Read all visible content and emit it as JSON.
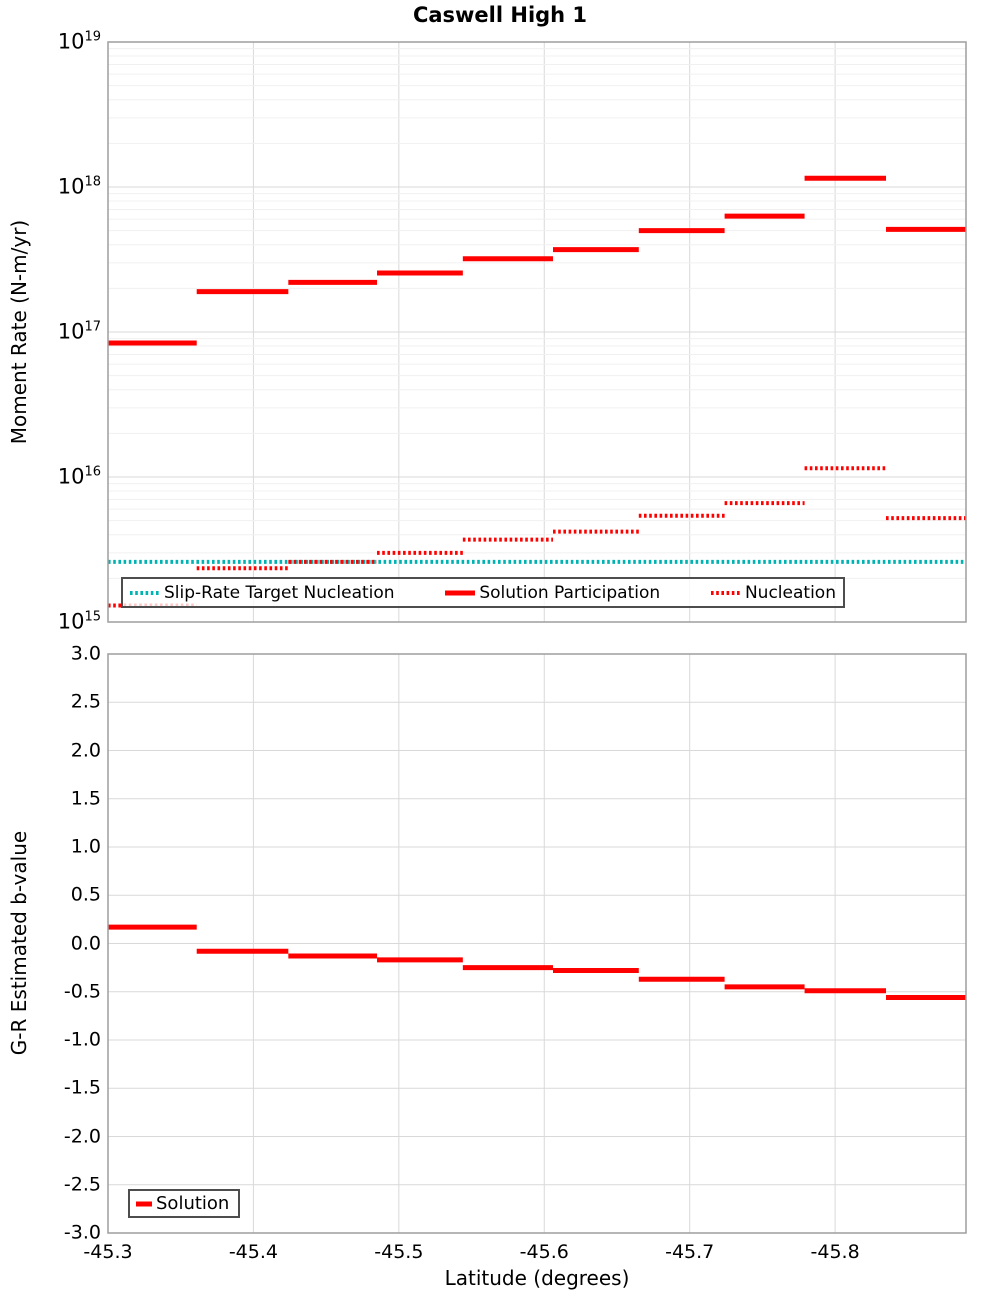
{
  "title": "Caswell High 1",
  "axes": {
    "xlabel": "Latitude (degrees)",
    "ylabel_top": "Moment Rate (N-m/yr)",
    "ylabel_bottom": "G-R Estimated b-value"
  },
  "colors": {
    "solution_red": "#ff0000",
    "target_teal": "#00b3b3",
    "grid_major": "#d9d9d9",
    "grid_minor": "#f0f0f0",
    "spine": "#9e9e9e",
    "legend_border": "#4d4d4d"
  },
  "chart_data": [
    {
      "type": "line",
      "panel": "moment-rate",
      "title": "Caswell High 1",
      "ylabel": "Moment Rate (N-m/yr)",
      "yscale": "log",
      "ylim": [
        1000000000000000.0,
        1e+19
      ],
      "ytick_exponents": [
        19,
        18,
        17,
        16,
        15
      ],
      "xlim": [
        -45.3,
        -45.89
      ],
      "grid": true,
      "legend_position": "inside-bottom-left",
      "boundaries": [
        -45.3,
        -45.361,
        -45.424,
        -45.485,
        -45.544,
        -45.606,
        -45.665,
        -45.724,
        -45.779,
        -45.835,
        -45.89
      ],
      "series": [
        {
          "name": "Slip-Rate Target Nucleation",
          "style": "dotted",
          "color": "#00b3b3",
          "kind": "constant",
          "value": 2600000000000000.0
        },
        {
          "name": "Solution Participation",
          "style": "solid",
          "color": "#ff0000",
          "kind": "steps",
          "values": [
            8.4e+16,
            1.9e+17,
            2.2e+17,
            2.55e+17,
            3.2e+17,
            3.7e+17,
            5e+17,
            6.3e+17,
            1.15e+18,
            5.1e+17
          ]
        },
        {
          "name": "Nucleation",
          "style": "dotted",
          "color": "#ff0000",
          "kind": "steps",
          "values": [
            1300000000000000.0,
            2350000000000000.0,
            2600000000000000.0,
            3000000000000000.0,
            3700000000000000.0,
            4200000000000000.0,
            5400000000000000.0,
            6600000000000000.0,
            1.15e+16,
            5200000000000000.0
          ]
        }
      ]
    },
    {
      "type": "line",
      "panel": "b-value",
      "ylabel": "G-R Estimated b-value",
      "yscale": "linear",
      "ylim": [
        -3.0,
        3.0
      ],
      "ytick_step": 0.5,
      "xlabel": "Latitude (degrees)",
      "xlim": [
        -45.3,
        -45.89
      ],
      "xticks": [
        -45.3,
        -45.4,
        -45.5,
        -45.6,
        -45.7,
        -45.8
      ],
      "grid": true,
      "legend_position": "inside-bottom-left",
      "boundaries": [
        -45.3,
        -45.361,
        -45.424,
        -45.485,
        -45.544,
        -45.606,
        -45.665,
        -45.724,
        -45.779,
        -45.835,
        -45.89
      ],
      "series": [
        {
          "name": "Solution",
          "style": "solid",
          "color": "#ff0000",
          "kind": "steps",
          "values": [
            0.17,
            -0.08,
            -0.13,
            -0.17,
            -0.25,
            -0.28,
            -0.37,
            -0.45,
            -0.49,
            -0.56
          ]
        }
      ]
    }
  ]
}
